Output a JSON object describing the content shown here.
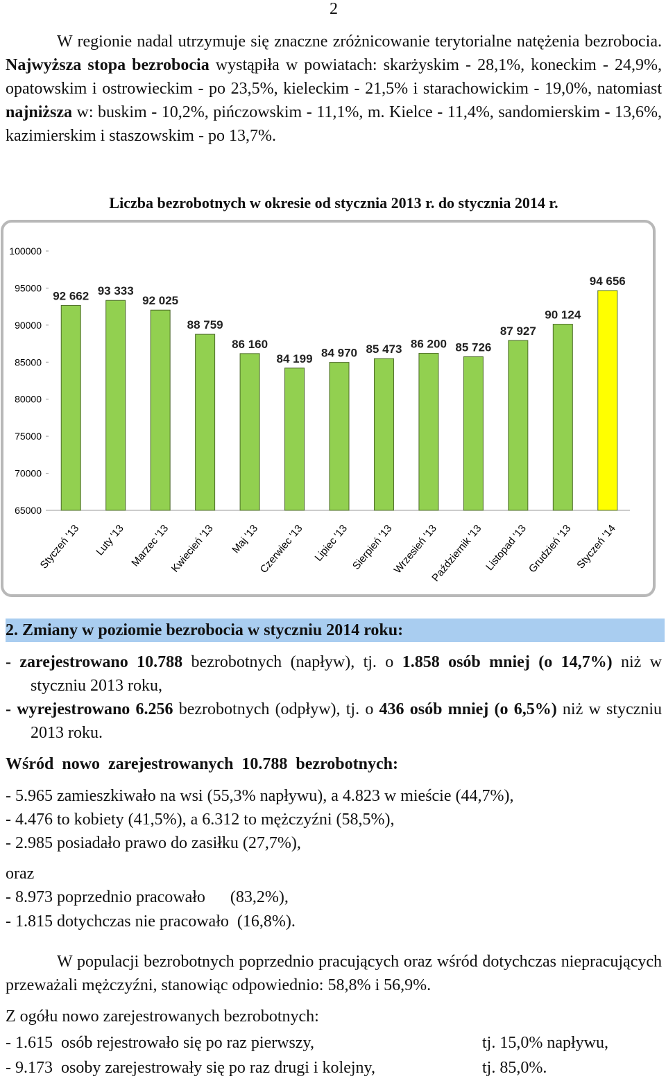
{
  "page_number": "2",
  "intro": [
    {
      "text": "W regionie nadal utrzymuje się znaczne zróżnicowanie terytorialne natężenia bezrobocia. "
    },
    {
      "text": "Najwyższa stopa bezrobocia",
      "bold": true
    },
    {
      "text": " wystąpiła w powiatach: skarżyskim - 28,1%, koneckim - 24,9%, opatowskim i ostrowieckim - po 23,5%, kieleckim - 21,5% i starachowickim - 19,0%, natomiast "
    },
    {
      "text": "najniższa",
      "bold": true
    },
    {
      "text": " w: buskim - 10,2%, pińczowskim - 11,1%, m. Kielce - 11,4%, sandomierskim - 13,6%, kazimierskim i staszowskim - po 13,7%."
    }
  ],
  "chart_data": {
    "type": "bar",
    "title": "Liczba bezrobotnych w okresie od stycznia 2013 r. do stycznia 2014 r.",
    "categories": [
      "Styczeń '13",
      "Luty '13",
      "Marzec '13",
      "Kwiecień '13",
      "Maj '13",
      "Czerwiec '13",
      "Lipiec '13",
      "Sierpień '13",
      "Wrzesień '13",
      "Październik '13",
      "Listopad '13",
      "Grudzień '13",
      "Styczeń '14"
    ],
    "values": [
      92662,
      93333,
      92025,
      88759,
      86160,
      84199,
      84970,
      85473,
      86200,
      85726,
      87927,
      90124,
      94656
    ],
    "value_labels": [
      "92 662",
      "93 333",
      "92 025",
      "88 759",
      "86 160",
      "84 199",
      "84 970",
      "85 473",
      "86 200",
      "85 726",
      "87 927",
      "90 124",
      "94 656"
    ],
    "colors": [
      "#92d050",
      "#92d050",
      "#92d050",
      "#92d050",
      "#92d050",
      "#92d050",
      "#92d050",
      "#92d050",
      "#92d050",
      "#92d050",
      "#92d050",
      "#92d050",
      "#ffff00"
    ],
    "ylim": [
      65000,
      100000
    ],
    "yticks": [
      65000,
      70000,
      75000,
      80000,
      85000,
      90000,
      95000,
      100000
    ]
  },
  "section_heading": "2. Zmiany w poziomie bezrobocia w styczniu 2014 roku:",
  "changes": [
    [
      {
        "text": "- zarejestrowano 10.788",
        "bold": true
      },
      {
        "text": " bezrobotnych (napływ), tj. o "
      },
      {
        "text": "1.858 osób mniej (o 14,7%)",
        "bold": true
      },
      {
        "text": " niż w styczniu 2013 roku,"
      }
    ],
    [
      {
        "text": "- wyrejestrowano 6.256",
        "bold": true
      },
      {
        "text": " bezrobotnych (odpływ), tj. o "
      },
      {
        "text": "436 osób mniej (o 6,5%)",
        "bold": true
      },
      {
        "text": " niż w styczniu 2013 roku."
      }
    ]
  ],
  "new_heading": "Wśród nowo zarejestrowanych 10.788 bezrobotnych:",
  "new_lines": [
    "- 5.965 zamieszkiwało na wsi (55,3% napływu), a 4.823 w mieście (44,7%),",
    "- 4.476 to kobiety (41,5%), a 6.312 to mężczyźni (58,5%),",
    "- 2.985 posiadało prawo do zasiłku (27,7%),"
  ],
  "oraz": "oraz",
  "work_lines": [
    "- 8.973 poprzednio pracowało      (83,2%),",
    "- 1.815 dotychczas nie pracowało  (16,8%)."
  ],
  "summary": "W populacji bezrobotnych poprzednio pracujących oraz wśród dotychczas niepracujących przeważali mężczyźni, stanowiąc odpowiednio: 58,8% i 56,9%.",
  "total_heading": "Z ogółu nowo zarejestrowanych bezrobotnych:",
  "total_rows": [
    [
      "- 1.615  osób rejestrowało się po raz pierwszy,",
      "tj. 15,0% napływu,"
    ],
    [
      "- 9.173  osoby zarejestrowały się po raz drugi i kolejny,",
      "tj. 85,0%."
    ]
  ]
}
